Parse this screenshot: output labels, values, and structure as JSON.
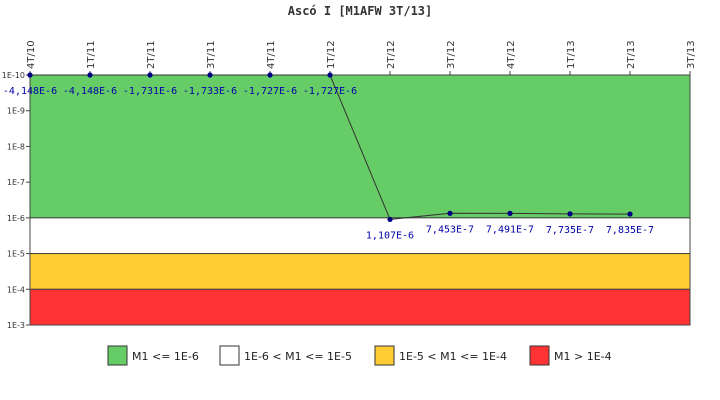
{
  "chart_data": {
    "type": "line",
    "title": "Ascó I [M1AFW 3T/13]",
    "xlabel": "",
    "ylabel": "",
    "y_scale": "log",
    "y_reversed": true,
    "ylim": [
      1e-10,
      0.001
    ],
    "y_tick_labels": [
      "1E-10",
      "1E-9",
      "1E-8",
      "1E-7",
      "1E-6",
      "1E-5",
      "1E-4",
      "1E-3"
    ],
    "categories": [
      "4T/10",
      "1T/11",
      "2T/11",
      "3T/11",
      "4T/11",
      "1T/12",
      "2T/12",
      "3T/12",
      "4T/12",
      "1T/13",
      "2T/13",
      "3T/13"
    ],
    "series": [
      {
        "name": "",
        "color": "#333333",
        "marker_color": "#000080",
        "values": [
          -4.148e-06,
          -4.148e-06,
          -1.731e-06,
          -1.733e-06,
          -1.727e-06,
          -1.727e-06,
          1.107e-06,
          7.453e-07,
          7.491e-07,
          7.735e-07,
          7.835e-07,
          null
        ],
        "labels": [
          "-4,148E-6",
          "-4,148E-6",
          "-1,731E-6",
          "-1,733E-6",
          "-1,727E-6",
          "-1,727E-6",
          "1,107E-6",
          "7,453E-7",
          "7,491E-7",
          "7,735E-7",
          "7,835E-7",
          ""
        ]
      }
    ],
    "bands": [
      {
        "from": 1e-10,
        "to": 1e-06,
        "color": "#66cc66",
        "label": "M1 <= 1E-6"
      },
      {
        "from": 1e-06,
        "to": 1e-05,
        "color": "#ffffff",
        "label": "1E-6 < M1 <= 1E-5"
      },
      {
        "from": 1e-05,
        "to": 0.0001,
        "color": "#ffcc33",
        "label": "1E-5 < M1 <= 1E-4"
      },
      {
        "from": 0.0001,
        "to": 0.001,
        "color": "#ff3333",
        "label": "M1 > 1E-4"
      }
    ],
    "legend": "bottom",
    "grid": false
  }
}
